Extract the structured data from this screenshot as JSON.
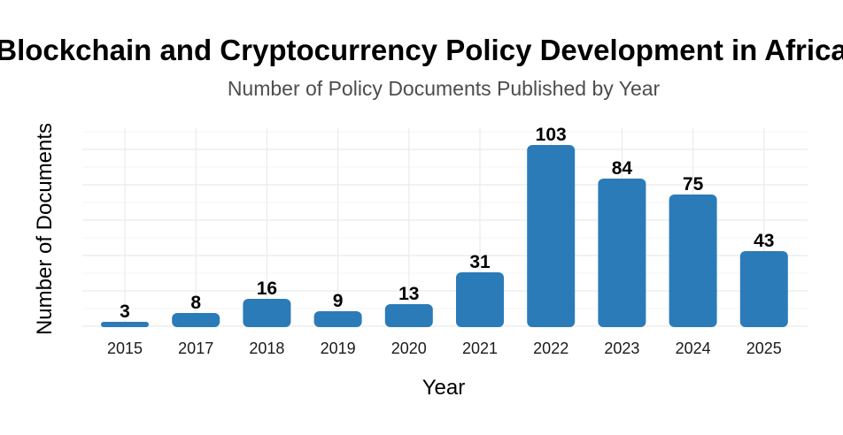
{
  "chart_data": {
    "type": "bar",
    "title": "Blockchain and Cryptocurrency Policy Development in Africa",
    "subtitle": "Number of Policy Documents Published by Year",
    "xlabel": "Year",
    "ylabel": "Number of Documents",
    "categories": [
      "2015",
      "2017",
      "2018",
      "2019",
      "2020",
      "2021",
      "2022",
      "2023",
      "2024",
      "2025"
    ],
    "values": [
      3,
      8,
      16,
      9,
      13,
      31,
      103,
      84,
      75,
      43
    ],
    "ylim": [
      0,
      110
    ],
    "grid": true,
    "y_tick_labels_shown": false,
    "bar_color": "#2b7bb9",
    "legend": "none"
  }
}
